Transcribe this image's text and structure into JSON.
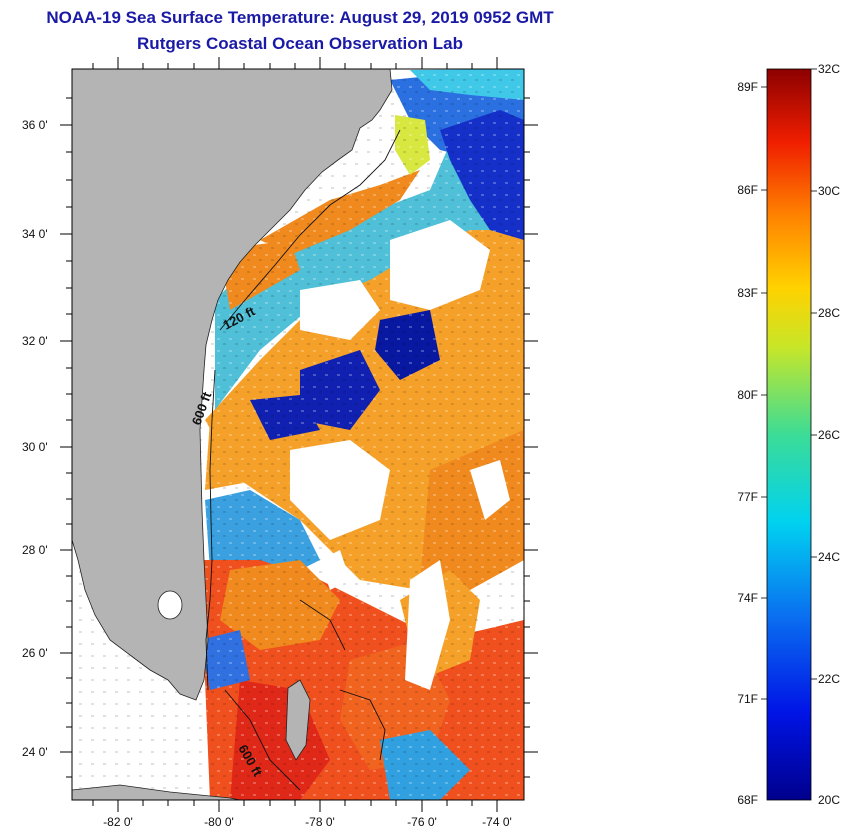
{
  "title": {
    "line1": "NOAA-19 Sea Surface Temperature:  August 29, 2019 0952 GMT",
    "line2": "Rutgers Coastal Ocean Observation Lab"
  },
  "map": {
    "lat_ticks": [
      "36 0'",
      "34 0'",
      "32 0'",
      "30 0'",
      "28 0'",
      "26 0'",
      "24 0'"
    ],
    "lon_ticks": [
      "-82 0'",
      "-80 0'",
      "-78 0'",
      "-76 0'",
      "-74 0'"
    ],
    "contour_labels": [
      "120 ft",
      "600 ft",
      "600 ft"
    ],
    "colors": {
      "land": "#b4b4b4",
      "cloud": "#ffffff"
    }
  },
  "colorbar": {
    "fahrenheit_labels": [
      "89F",
      "86F",
      "83F",
      "80F",
      "77F",
      "74F",
      "71F",
      "68F"
    ],
    "celsius_labels": [
      "32C",
      "30C",
      "28C",
      "26C",
      "24C",
      "22C",
      "20C"
    ]
  }
}
